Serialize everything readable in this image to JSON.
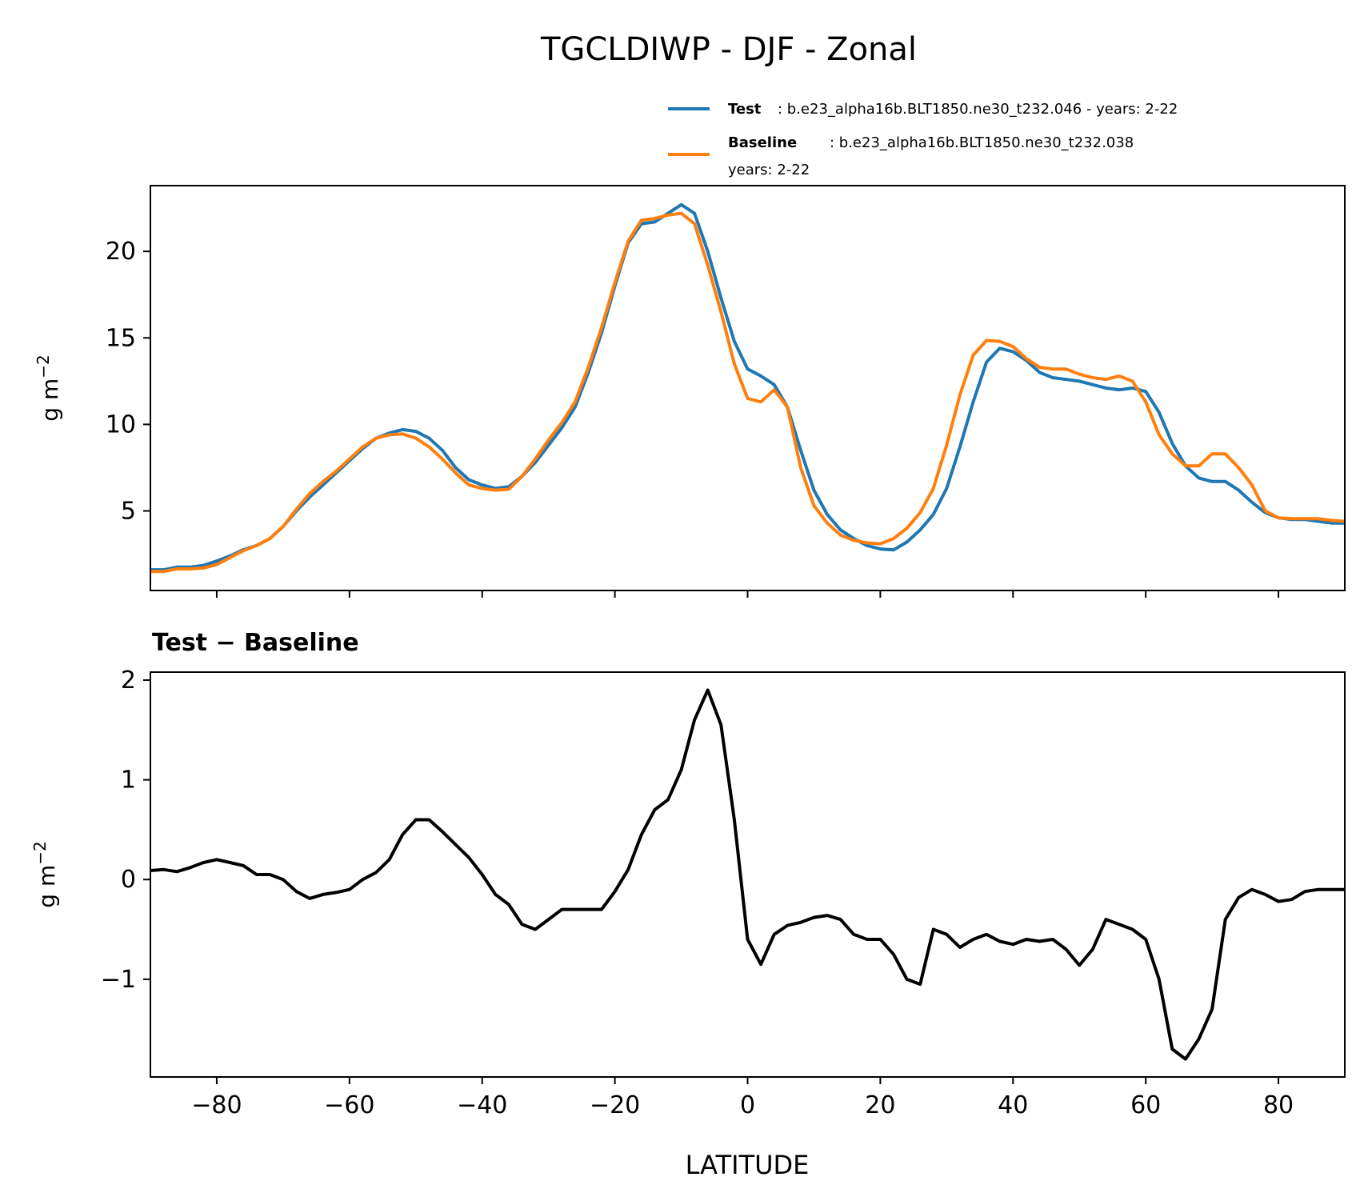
{
  "chart_data": [
    {
      "type": "line",
      "title": "TGCLDIWP - DJF - Zonal",
      "xlabel": "",
      "ylabel": "g m",
      "ylabel_sup": "−2",
      "xlim": [
        -90,
        90
      ],
      "ylim": [
        0.4,
        23.8
      ],
      "yticks": [
        5,
        10,
        15,
        20
      ],
      "ytick_labels": [
        "5",
        "10",
        "15",
        "20"
      ],
      "xticks": [
        -80,
        -60,
        -40,
        -20,
        0,
        20,
        40,
        60,
        80
      ],
      "legend_position": "above-right",
      "series": [
        {
          "name": "Test",
          "legend_label": ": b.e23_alpha16b.BLT1850.ne30_t232.046 - years: 2-22",
          "color": "#1f77b4",
          "x": [
            -90,
            -88,
            -86,
            -84,
            -82,
            -80,
            -78,
            -76,
            -74,
            -72,
            -70,
            -68,
            -66,
            -64,
            -62,
            -60,
            -58,
            -56,
            -54,
            -52,
            -50,
            -48,
            -46,
            -44,
            -42,
            -40,
            -38,
            -36,
            -34,
            -32,
            -30,
            -28,
            -26,
            -24,
            -22,
            -20,
            -18,
            -16,
            -14,
            -12,
            -10,
            -8,
            -6,
            -4,
            -2,
            0,
            2,
            4,
            6,
            8,
            10,
            12,
            14,
            16,
            18,
            20,
            22,
            24,
            26,
            28,
            30,
            32,
            34,
            36,
            38,
            40,
            42,
            44,
            46,
            48,
            50,
            52,
            54,
            56,
            58,
            60,
            62,
            64,
            66,
            68,
            70,
            72,
            74,
            76,
            78,
            80,
            82,
            84,
            86,
            88,
            90
          ],
          "y": [
            1.6,
            1.6,
            1.75,
            1.75,
            1.85,
            2.1,
            2.4,
            2.75,
            3.0,
            3.4,
            4.1,
            5.0,
            5.8,
            6.5,
            7.2,
            7.9,
            8.6,
            9.2,
            9.5,
            9.7,
            9.6,
            9.2,
            8.5,
            7.5,
            6.8,
            6.5,
            6.3,
            6.4,
            7.0,
            7.8,
            8.8,
            9.8,
            11.0,
            13.0,
            15.3,
            18.0,
            20.5,
            21.6,
            21.7,
            22.2,
            22.7,
            22.2,
            20.0,
            17.3,
            14.8,
            13.2,
            12.8,
            12.3,
            11.0,
            8.5,
            6.2,
            4.8,
            3.9,
            3.4,
            3.0,
            2.8,
            2.75,
            3.2,
            3.9,
            4.8,
            6.3,
            8.7,
            11.3,
            13.6,
            14.4,
            14.2,
            13.7,
            13.0,
            12.7,
            12.6,
            12.5,
            12.3,
            12.1,
            12.0,
            12.1,
            11.9,
            10.7,
            8.9,
            7.6,
            6.9,
            6.7,
            6.7,
            6.2,
            5.5,
            4.9,
            4.6,
            4.5,
            4.5,
            4.4,
            4.3,
            4.3
          ]
        },
        {
          "name": "Baseline",
          "legend_label": ": b.e23_alpha16b.BLT1850.ne30_t232.038",
          "legend_label_line2": "years: 2-22",
          "color": "#ff7f0e",
          "x": [
            -90,
            -88,
            -86,
            -84,
            -82,
            -80,
            -78,
            -76,
            -74,
            -72,
            -70,
            -68,
            -66,
            -64,
            -62,
            -60,
            -58,
            -56,
            -54,
            -52,
            -50,
            -48,
            -46,
            -44,
            -42,
            -40,
            -38,
            -36,
            -34,
            -32,
            -30,
            -28,
            -26,
            -24,
            -22,
            -20,
            -18,
            -16,
            -14,
            -12,
            -10,
            -8,
            -6,
            -4,
            -2,
            0,
            2,
            4,
            6,
            8,
            10,
            12,
            14,
            16,
            18,
            20,
            22,
            24,
            26,
            28,
            30,
            32,
            34,
            36,
            38,
            40,
            42,
            44,
            46,
            48,
            50,
            52,
            54,
            56,
            58,
            60,
            62,
            64,
            66,
            68,
            70,
            72,
            74,
            76,
            78,
            80,
            82,
            84,
            86,
            88,
            90
          ],
          "y": [
            1.5,
            1.5,
            1.65,
            1.65,
            1.7,
            1.9,
            2.3,
            2.7,
            3.0,
            3.4,
            4.1,
            5.1,
            6.0,
            6.7,
            7.3,
            8.0,
            8.7,
            9.2,
            9.4,
            9.45,
            9.2,
            8.7,
            8.0,
            7.2,
            6.5,
            6.3,
            6.2,
            6.25,
            7.0,
            8.0,
            9.1,
            10.1,
            11.3,
            13.3,
            15.6,
            18.2,
            20.6,
            21.8,
            21.9,
            22.1,
            22.2,
            21.6,
            19.2,
            16.5,
            13.5,
            11.5,
            11.3,
            12.0,
            11.0,
            7.5,
            5.3,
            4.3,
            3.6,
            3.3,
            3.15,
            3.1,
            3.4,
            4.0,
            4.9,
            6.3,
            8.8,
            11.7,
            14.0,
            14.85,
            14.8,
            14.5,
            13.8,
            13.3,
            13.2,
            13.2,
            12.9,
            12.7,
            12.6,
            12.8,
            12.5,
            11.3,
            9.4,
            8.3,
            7.6,
            7.6,
            8.3,
            8.3,
            7.5,
            6.5,
            5.0,
            4.6,
            4.55,
            4.55,
            4.55,
            4.45,
            4.4
          ]
        }
      ]
    },
    {
      "type": "line",
      "title": "Test − Baseline",
      "xlabel": "LATITUDE",
      "ylabel": "g m",
      "ylabel_sup": "−2",
      "xlim": [
        -90,
        90
      ],
      "ylim": [
        -1.98,
        2.08
      ],
      "yticks": [
        -1,
        0,
        1,
        2
      ],
      "ytick_labels": [
        "−1",
        "0",
        "1",
        "2"
      ],
      "xticks": [
        -80,
        -60,
        -40,
        -20,
        0,
        20,
        40,
        60,
        80
      ],
      "xtick_labels": [
        "−80",
        "−60",
        "−40",
        "−20",
        "0",
        "20",
        "40",
        "60",
        "80"
      ],
      "series": [
        {
          "name": "Test − Baseline",
          "color": "#000000",
          "x": [
            -90,
            -88,
            -86,
            -84,
            -82,
            -80,
            -78,
            -76,
            -74,
            -72,
            -70,
            -68,
            -66,
            -64,
            -62,
            -60,
            -58,
            -56,
            -54,
            -52,
            -50,
            -48,
            -46,
            -44,
            -42,
            -40,
            -38,
            -36,
            -34,
            -32,
            -30,
            -28,
            -26,
            -24,
            -22,
            -20,
            -18,
            -16,
            -14,
            -12,
            -10,
            -8,
            -6,
            -4,
            -2,
            0,
            2,
            4,
            6,
            8,
            10,
            12,
            14,
            16,
            18,
            20,
            22,
            24,
            26,
            28,
            30,
            32,
            34,
            36,
            38,
            40,
            42,
            44,
            46,
            48,
            50,
            52,
            54,
            56,
            58,
            60,
            62,
            64,
            66,
            68,
            70,
            72,
            74,
            76,
            78,
            80,
            82,
            84,
            86,
            88,
            90
          ],
          "y": [
            0.09,
            0.1,
            0.08,
            0.12,
            0.17,
            0.2,
            0.17,
            0.14,
            0.05,
            0.05,
            0.0,
            -0.12,
            -0.19,
            -0.15,
            -0.13,
            -0.1,
            0.0,
            0.07,
            0.2,
            0.45,
            0.6,
            0.6,
            0.48,
            0.35,
            0.22,
            0.05,
            -0.15,
            -0.25,
            -0.45,
            -0.5,
            -0.4,
            -0.3,
            -0.3,
            -0.3,
            -0.3,
            -0.12,
            0.1,
            0.45,
            0.7,
            0.8,
            1.1,
            1.6,
            1.9,
            1.55,
            0.6,
            -0.6,
            -0.85,
            -0.55,
            -0.46,
            -0.43,
            -0.38,
            -0.36,
            -0.4,
            -0.55,
            -0.6,
            -0.6,
            -0.75,
            -1.0,
            -1.05,
            -0.5,
            -0.55,
            -0.68,
            -0.6,
            -0.55,
            -0.62,
            -0.65,
            -0.6,
            -0.62,
            -0.6,
            -0.7,
            -0.86,
            -0.7,
            -0.4,
            -0.45,
            -0.5,
            -0.6,
            -1.0,
            -1.7,
            -1.8,
            -1.6,
            -1.3,
            -0.4,
            -0.18,
            -0.1,
            -0.15,
            -0.22,
            -0.2,
            -0.12,
            -0.1,
            -0.1,
            -0.1
          ]
        }
      ]
    }
  ]
}
